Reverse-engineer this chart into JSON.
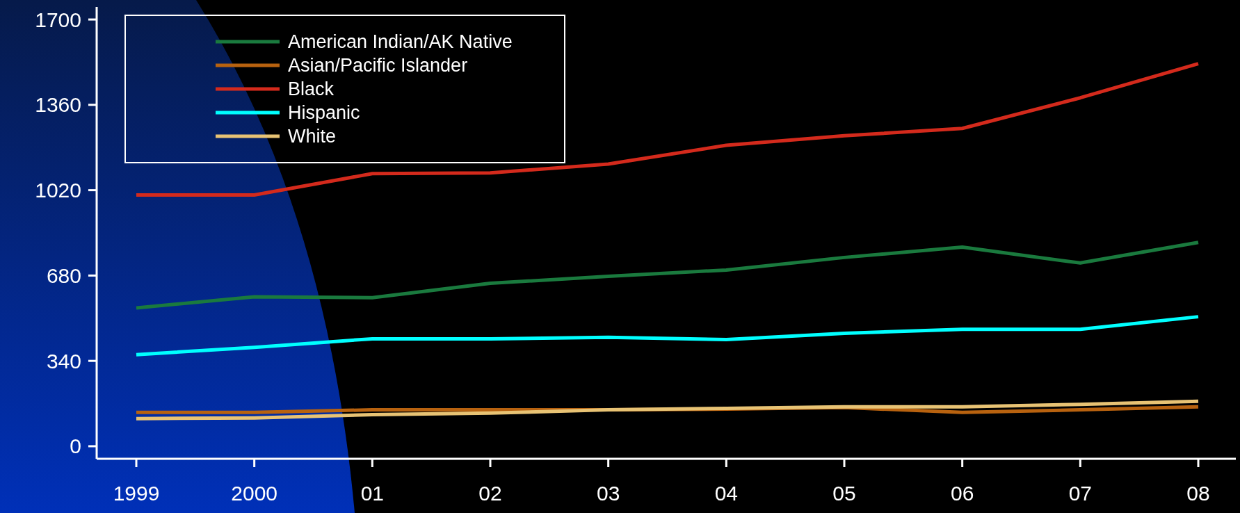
{
  "chart_data": {
    "type": "line",
    "categories": [
      "1999",
      "2000",
      "01",
      "02",
      "03",
      "04",
      "05",
      "06",
      "07",
      "08"
    ],
    "ylim": [
      -50,
      1750
    ],
    "yticks": [
      0,
      340,
      680,
      1020,
      1360,
      1700
    ],
    "legend": "top left",
    "grid": false,
    "marker": "none",
    "line_style": "solid",
    "series": [
      {
        "name": "American Indian/AK Native",
        "color": "#1a7a3e",
        "values": [
          551,
          595,
          592,
          649,
          677,
          702,
          752,
          793,
          730,
          812
        ]
      },
      {
        "name": "Asian/Pacific Islander",
        "color": "#b8620f",
        "values": [
          135,
          135,
          145,
          145,
          145,
          148,
          154,
          135,
          145,
          157
        ]
      },
      {
        "name": "Black",
        "color": "#d42a1c",
        "values": [
          1001,
          1001,
          1086,
          1089,
          1124,
          1199,
          1237,
          1266,
          1388,
          1524
        ]
      },
      {
        "name": "Hispanic",
        "color": "#00ffff",
        "values": [
          365,
          394,
          428,
          428,
          434,
          425,
          450,
          466,
          466,
          516
        ]
      },
      {
        "name": "White",
        "color": "#e8c374",
        "values": [
          110,
          113,
          126,
          132,
          145,
          151,
          157,
          157,
          167,
          179
        ]
      }
    ]
  }
}
